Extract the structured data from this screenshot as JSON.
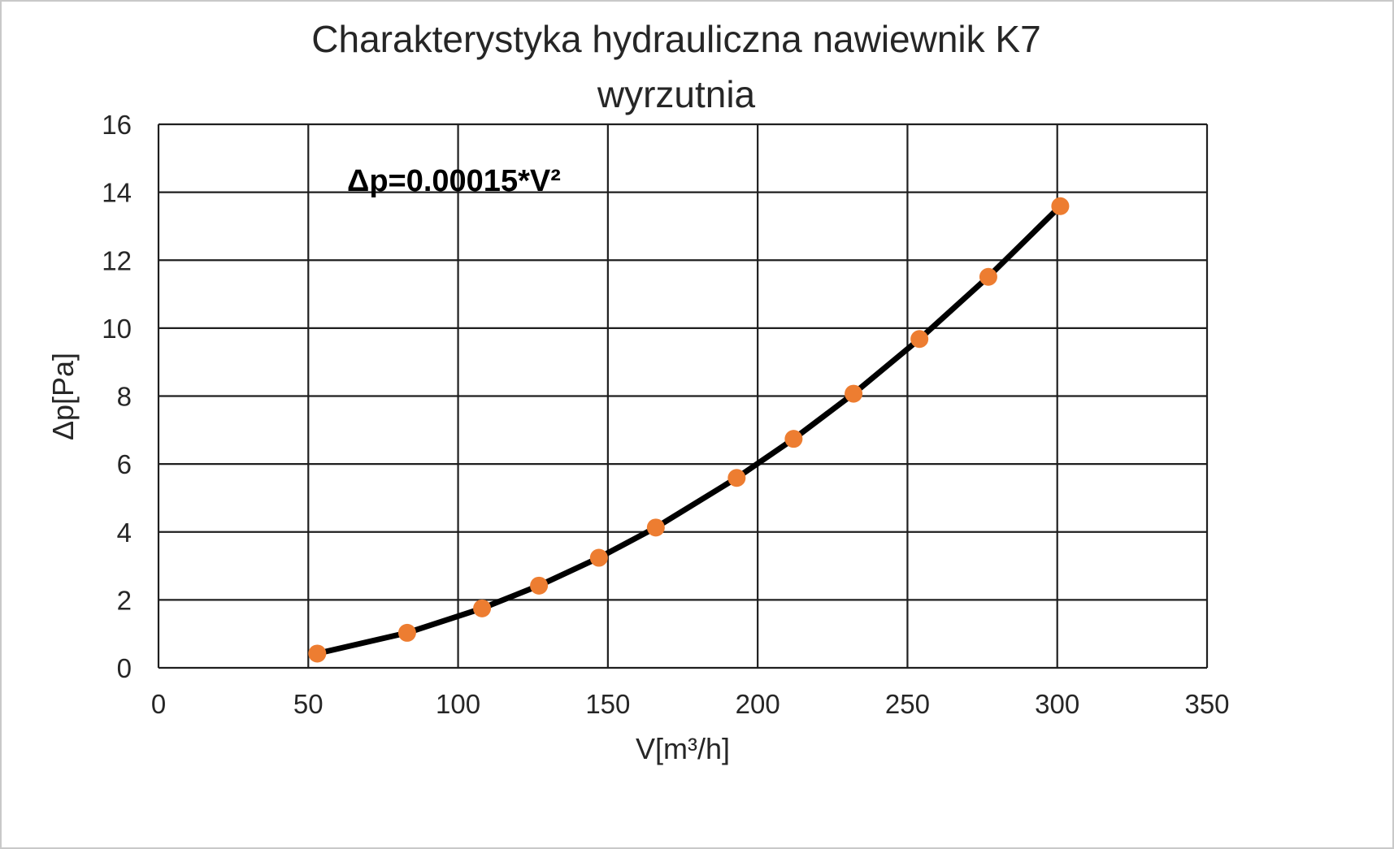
{
  "page": {
    "background": "#ffffff",
    "border_color": "#c9c9c9"
  },
  "chart_data": {
    "type": "line",
    "title_lines": [
      "Charakterystyka hydrauliczna nawiewnik K7",
      "wyrzutnia"
    ],
    "xlabel": "V[m³/h]",
    "ylabel": "Δp[Pa]",
    "annotation": "Δp=0.00015*V²",
    "xlim": [
      0,
      350
    ],
    "ylim": [
      0,
      16
    ],
    "xticks": [
      0,
      50,
      100,
      150,
      200,
      250,
      300,
      350
    ],
    "yticks": [
      0,
      2,
      4,
      6,
      8,
      10,
      12,
      14,
      16
    ],
    "grid": true,
    "legend_position": "none",
    "colors": {
      "line": "#000000",
      "marker": "#ED7D31",
      "grid": "#1f1f1f"
    },
    "series": [
      {
        "name": "wyrzutnia",
        "x": [
          53,
          83,
          108,
          127,
          147,
          166,
          193,
          212,
          232,
          254,
          277,
          301
        ],
        "y": [
          0.42,
          1.03,
          1.75,
          2.42,
          3.24,
          4.13,
          5.59,
          6.74,
          8.07,
          9.68,
          11.51,
          13.59
        ]
      }
    ]
  }
}
